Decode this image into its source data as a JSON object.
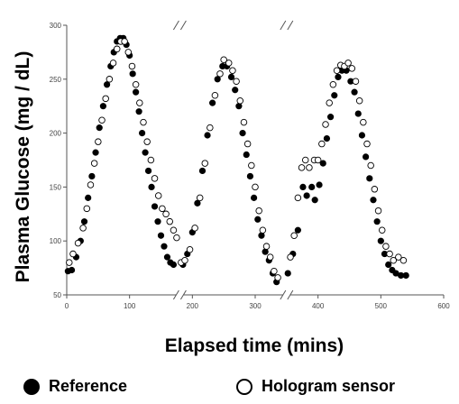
{
  "chart_data": {
    "type": "scatter",
    "title": "",
    "xlabel": "Elapsed time (mins)",
    "ylabel": "Plasma Glucose (mg / dL)",
    "xlim": [
      0,
      600
    ],
    "ylim": [
      50,
      300
    ],
    "xticks": [
      0,
      100,
      200,
      300,
      400,
      500,
      600
    ],
    "yticks": [
      50,
      100,
      150,
      200,
      250,
      300
    ],
    "grid": false,
    "axis_breaks": [
      180,
      350
    ],
    "legend_position": "bottom",
    "series": [
      {
        "name": "Reference",
        "marker": "filled-circle",
        "color": "#000000",
        "points": [
          [
            2,
            72
          ],
          [
            8,
            73
          ],
          [
            15,
            85
          ],
          [
            22,
            100
          ],
          [
            28,
            118
          ],
          [
            34,
            140
          ],
          [
            40,
            160
          ],
          [
            46,
            182
          ],
          [
            52,
            205
          ],
          [
            58,
            225
          ],
          [
            64,
            245
          ],
          [
            70,
            262
          ],
          [
            75,
            275
          ],
          [
            80,
            285
          ],
          [
            85,
            288
          ],
          [
            90,
            288
          ],
          [
            95,
            282
          ],
          [
            100,
            272
          ],
          [
            105,
            255
          ],
          [
            110,
            238
          ],
          [
            115,
            220
          ],
          [
            120,
            200
          ],
          [
            125,
            182
          ],
          [
            130,
            165
          ],
          [
            135,
            150
          ],
          [
            140,
            132
          ],
          [
            145,
            118
          ],
          [
            150,
            105
          ],
          [
            155,
            95
          ],
          [
            160,
            85
          ],
          [
            165,
            80
          ],
          [
            170,
            78
          ],
          [
            185,
            78
          ],
          [
            192,
            88
          ],
          [
            200,
            108
          ],
          [
            208,
            135
          ],
          [
            216,
            165
          ],
          [
            224,
            198
          ],
          [
            232,
            228
          ],
          [
            240,
            250
          ],
          [
            248,
            262
          ],
          [
            255,
            262
          ],
          [
            262,
            252
          ],
          [
            268,
            240
          ],
          [
            274,
            225
          ],
          [
            280,
            200
          ],
          [
            286,
            180
          ],
          [
            292,
            160
          ],
          [
            298,
            140
          ],
          [
            304,
            120
          ],
          [
            310,
            105
          ],
          [
            316,
            90
          ],
          [
            322,
            82
          ],
          [
            328,
            70
          ],
          [
            334,
            62
          ],
          [
            352,
            70
          ],
          [
            360,
            88
          ],
          [
            368,
            110
          ],
          [
            376,
            150
          ],
          [
            382,
            142
          ],
          [
            390,
            150
          ],
          [
            395,
            138
          ],
          [
            402,
            152
          ],
          [
            408,
            172
          ],
          [
            414,
            195
          ],
          [
            420,
            215
          ],
          [
            426,
            235
          ],
          [
            432,
            252
          ],
          [
            438,
            258
          ],
          [
            445,
            258
          ],
          [
            452,
            248
          ],
          [
            458,
            238
          ],
          [
            464,
            218
          ],
          [
            470,
            198
          ],
          [
            476,
            178
          ],
          [
            482,
            158
          ],
          [
            488,
            138
          ],
          [
            494,
            118
          ],
          [
            500,
            100
          ],
          [
            506,
            88
          ],
          [
            512,
            78
          ],
          [
            518,
            73
          ],
          [
            524,
            70
          ],
          [
            532,
            68
          ],
          [
            540,
            68
          ]
        ]
      },
      {
        "name": "Hologram sensor",
        "marker": "open-circle",
        "color": "#000000",
        "points": [
          [
            4,
            80
          ],
          [
            10,
            88
          ],
          [
            18,
            98
          ],
          [
            26,
            112
          ],
          [
            32,
            130
          ],
          [
            38,
            152
          ],
          [
            44,
            172
          ],
          [
            50,
            192
          ],
          [
            56,
            212
          ],
          [
            62,
            232
          ],
          [
            68,
            250
          ],
          [
            74,
            265
          ],
          [
            80,
            278
          ],
          [
            86,
            285
          ],
          [
            92,
            285
          ],
          [
            98,
            275
          ],
          [
            104,
            262
          ],
          [
            110,
            245
          ],
          [
            116,
            228
          ],
          [
            122,
            210
          ],
          [
            128,
            192
          ],
          [
            134,
            175
          ],
          [
            140,
            158
          ],
          [
            146,
            142
          ],
          [
            152,
            130
          ],
          [
            158,
            125
          ],
          [
            164,
            118
          ],
          [
            170,
            110
          ],
          [
            175,
            103
          ],
          [
            182,
            80
          ],
          [
            188,
            82
          ],
          [
            196,
            92
          ],
          [
            204,
            112
          ],
          [
            212,
            140
          ],
          [
            220,
            172
          ],
          [
            228,
            205
          ],
          [
            236,
            235
          ],
          [
            244,
            255
          ],
          [
            250,
            268
          ],
          [
            258,
            265
          ],
          [
            264,
            258
          ],
          [
            270,
            248
          ],
          [
            276,
            230
          ],
          [
            282,
            210
          ],
          [
            288,
            190
          ],
          [
            294,
            170
          ],
          [
            300,
            150
          ],
          [
            306,
            128
          ],
          [
            312,
            110
          ],
          [
            318,
            95
          ],
          [
            324,
            85
          ],
          [
            330,
            72
          ],
          [
            336,
            66
          ],
          [
            356,
            85
          ],
          [
            362,
            105
          ],
          [
            368,
            140
          ],
          [
            374,
            168
          ],
          [
            380,
            175
          ],
          [
            386,
            168
          ],
          [
            394,
            175
          ],
          [
            400,
            175
          ],
          [
            406,
            190
          ],
          [
            412,
            208
          ],
          [
            418,
            228
          ],
          [
            424,
            245
          ],
          [
            430,
            258
          ],
          [
            436,
            263
          ],
          [
            442,
            262
          ],
          [
            448,
            265
          ],
          [
            454,
            260
          ],
          [
            460,
            248
          ],
          [
            466,
            230
          ],
          [
            472,
            210
          ],
          [
            478,
            190
          ],
          [
            484,
            170
          ],
          [
            490,
            148
          ],
          [
            496,
            128
          ],
          [
            502,
            110
          ],
          [
            508,
            95
          ],
          [
            514,
            88
          ],
          [
            520,
            82
          ],
          [
            528,
            85
          ],
          [
            536,
            82
          ]
        ]
      }
    ]
  }
}
